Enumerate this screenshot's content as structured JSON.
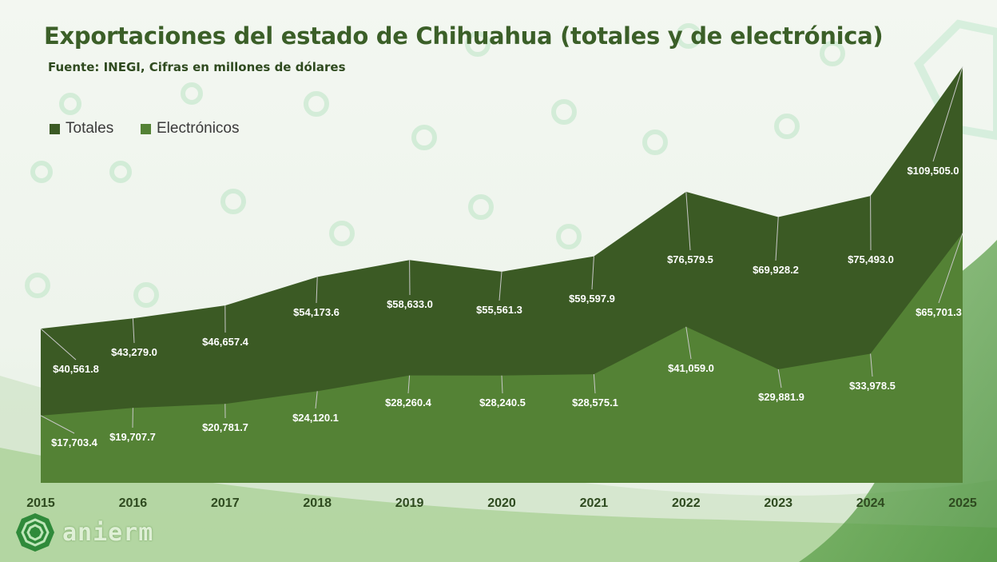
{
  "title": "Exportaciones del estado de Chihuahua (totales y de electrónica)",
  "subtitle": "Fuente: INEGI, Cifras en millones de dólares",
  "logo_text": "anierm",
  "colors": {
    "totales": "#3b5a24",
    "electronicos": "#548235",
    "title": "#3b5f28"
  },
  "chart_data": {
    "type": "area",
    "title": "Exportaciones del estado de Chihuahua (totales y de electrónica)",
    "subtitle": "Fuente: INEGI, Cifras en millones de dólares",
    "categories": [
      "2015",
      "2016",
      "2017",
      "2018",
      "2019",
      "2020",
      "2021",
      "2022",
      "2023",
      "2024",
      "2025"
    ],
    "series": [
      {
        "name": "Totales",
        "values": [
          40561.8,
          43279.0,
          46657.4,
          54173.6,
          58633.0,
          55561.3,
          59597.9,
          76579.5,
          69928.2,
          75493.0,
          109505.0
        ],
        "labels": [
          "$40,561.8",
          "$43,279.0",
          "$46,657.4",
          "$54,173.6",
          "$58,633.0",
          "$55,561.3",
          "$59,597.9",
          "$76,579.5",
          "$69,928.2",
          "$75,493.0",
          "$109,505.0"
        ]
      },
      {
        "name": "Electrónicos",
        "values": [
          17703.4,
          19707.7,
          20781.7,
          24120.1,
          28260.4,
          28240.5,
          28575.1,
          41059.0,
          29881.9,
          33978.5,
          65701.3
        ],
        "labels": [
          "$17,703.4",
          "$19,707.7",
          "$20,781.7",
          "$24,120.1",
          "$28,260.4",
          "$28,240.5",
          "$28,575.1",
          "$41,059.0",
          "$29,881.9",
          "$33,978.5",
          "$65,701.3"
        ]
      }
    ],
    "xlabel": "",
    "ylabel": "",
    "ylim": [
      0,
      110000
    ],
    "grid": false,
    "legend": "top-left"
  }
}
